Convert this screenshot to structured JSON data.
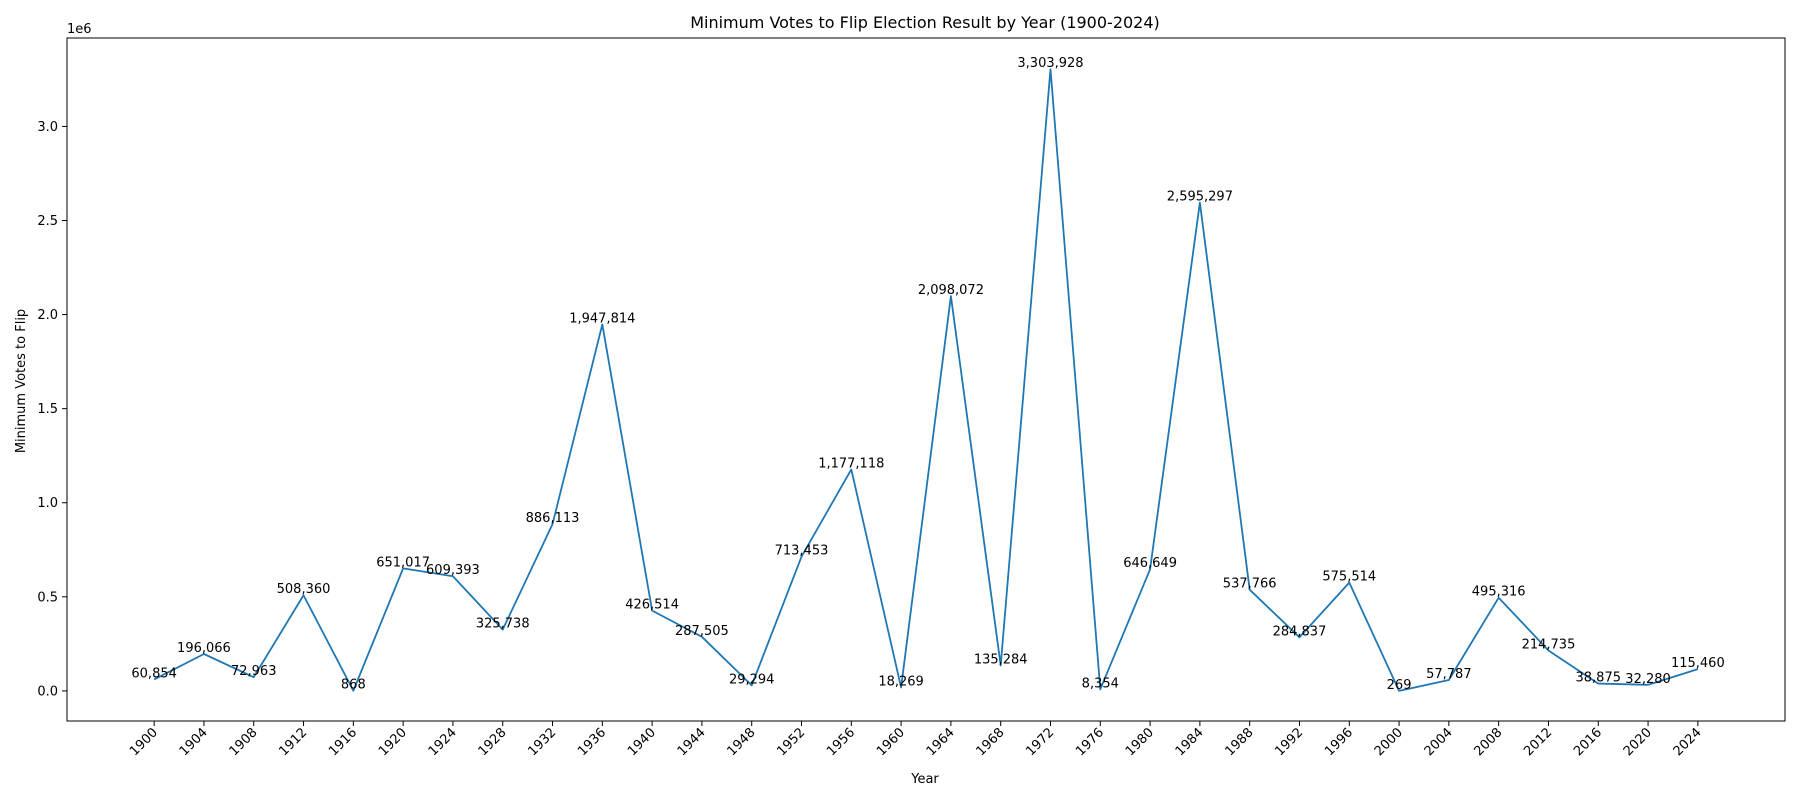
{
  "chart_data": {
    "type": "line",
    "title": "Minimum Votes to Flip Election Result by Year (1900-2024)",
    "xlabel": "Year",
    "ylabel": "Minimum Votes to Flip",
    "y_offset_text": "1e6",
    "ylim": [
      -160000,
      3470000
    ],
    "yticks": [
      0.0,
      0.5,
      1.0,
      1.5,
      2.0,
      2.5,
      3.0
    ],
    "ytick_labels": [
      "0.0",
      "0.5",
      "1.0",
      "1.5",
      "2.0",
      "2.5",
      "3.0"
    ],
    "y_scale": 1000000,
    "grid": false,
    "line_color": "#1f77b4",
    "x": [
      1900,
      1904,
      1908,
      1912,
      1916,
      1920,
      1924,
      1928,
      1932,
      1936,
      1940,
      1944,
      1948,
      1952,
      1956,
      1960,
      1964,
      1968,
      1972,
      1976,
      1980,
      1984,
      1988,
      1992,
      1996,
      2000,
      2004,
      2008,
      2012,
      2016,
      2020,
      2024
    ],
    "x_labels": [
      "1900",
      "1904",
      "1908",
      "1912",
      "1916",
      "1920",
      "1924",
      "1928",
      "1932",
      "1936",
      "1940",
      "1944",
      "1948",
      "1952",
      "1956",
      "1960",
      "1964",
      "1968",
      "1972",
      "1976",
      "1980",
      "1984",
      "1988",
      "1992",
      "1996",
      "2000",
      "2004",
      "2008",
      "2012",
      "2016",
      "2020",
      "2024"
    ],
    "values": [
      60854,
      196066,
      72963,
      508360,
      868,
      651017,
      609393,
      325738,
      886113,
      1947814,
      426514,
      287505,
      29294,
      713453,
      1177118,
      18269,
      2098072,
      135284,
      3303928,
      8354,
      646649,
      2595297,
      537766,
      284837,
      575514,
      269,
      57787,
      495316,
      214735,
      38875,
      32280,
      115460
    ],
    "value_labels": [
      "60,854",
      "196,066",
      "72,963",
      "508,360",
      "868",
      "651,017",
      "609,393",
      "325,738",
      "886,113",
      "1,947,814",
      "426,514",
      "287,505",
      "29,294",
      "713,453",
      "1,177,118",
      "18,269",
      "2,098,072",
      "135,284",
      "3,303,928",
      "8,354",
      "646,649",
      "2,595,297",
      "537,766",
      "284,837",
      "575,514",
      "269",
      "57,787",
      "495,316",
      "214,735",
      "38,875",
      "32,280",
      "115,460"
    ]
  }
}
